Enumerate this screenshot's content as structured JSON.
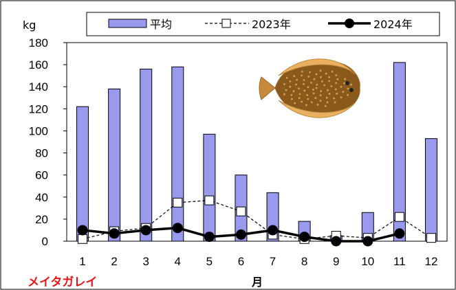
{
  "chart_data": {
    "type": "bar",
    "title": "",
    "species_label": "メイタガレイ",
    "ylabel": "kg",
    "xlabel": "月",
    "ylim": [
      0,
      180
    ],
    "yticks": [
      0,
      20,
      40,
      60,
      80,
      100,
      120,
      140,
      160,
      180
    ],
    "categories": [
      "1",
      "2",
      "3",
      "4",
      "5",
      "6",
      "7",
      "8",
      "9",
      "10",
      "11",
      "12"
    ],
    "series": [
      {
        "name": "平均",
        "kind": "bar",
        "color": "#9999ee",
        "values": [
          122,
          138,
          156,
          158,
          97,
          60,
          44,
          18,
          5,
          26,
          162,
          93
        ]
      },
      {
        "name": "2023年",
        "kind": "line",
        "style": "dashed",
        "marker": "open-square",
        "values": [
          2,
          9,
          12,
          35,
          37,
          27,
          6,
          2,
          5,
          3,
          22,
          3
        ]
      },
      {
        "name": "2024年",
        "kind": "line",
        "style": "solid",
        "marker": "filled-circle",
        "values": [
          10,
          7,
          10,
          12,
          4,
          6,
          10,
          4,
          0,
          0,
          7,
          null
        ]
      }
    ],
    "legend_position": "top",
    "grid": false,
    "illustration": "flatfish-icon"
  }
}
